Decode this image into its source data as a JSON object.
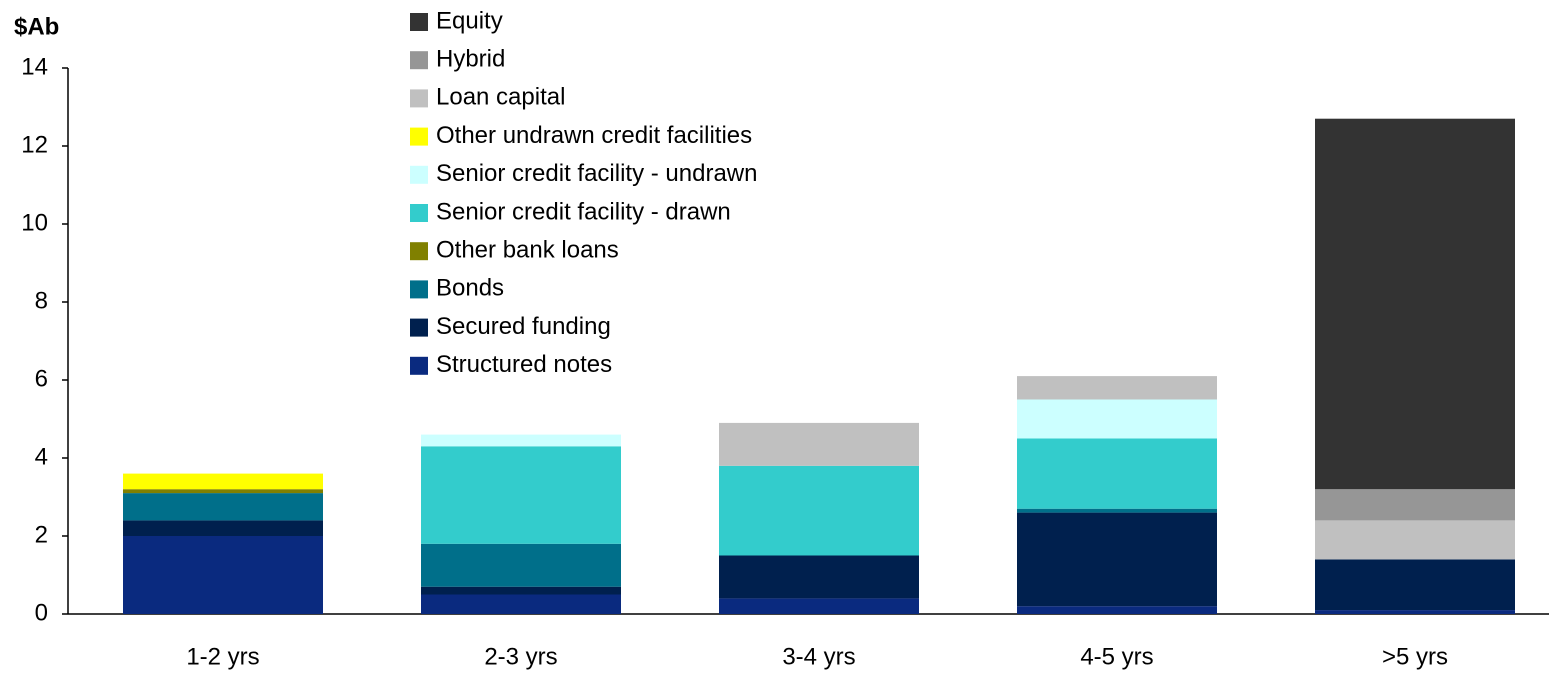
{
  "chart_data": {
    "type": "stacked_bar",
    "y_label": "$Ab",
    "categories": [
      "1-2 yrs",
      "2-3 yrs",
      "3-4 yrs",
      "4-5 yrs",
      ">5 yrs"
    ],
    "series": [
      {
        "name": "Structured notes",
        "color": "#0a2a7f",
        "values": [
          2.0,
          0.5,
          0.4,
          0.2,
          0.1
        ]
      },
      {
        "name": "Secured funding",
        "color": "#00204e",
        "values": [
          0.4,
          0.2,
          1.1,
          2.4,
          1.3
        ]
      },
      {
        "name": "Bonds",
        "color": "#006f8a",
        "values": [
          0.7,
          1.1,
          0,
          0.1,
          0
        ]
      },
      {
        "name": "Other bank loans",
        "color": "#808000",
        "values": [
          0.1,
          0,
          0,
          0,
          0
        ]
      },
      {
        "name": "Senior credit facility - drawn",
        "color": "#33cccc",
        "values": [
          0,
          2.5,
          2.3,
          1.8,
          0
        ]
      },
      {
        "name": "Senior credit facility - undrawn",
        "color": "#ccffff",
        "values": [
          0,
          0.3,
          0,
          1.0,
          0
        ]
      },
      {
        "name": "Other undrawn credit facilities",
        "color": "#ffff00",
        "values": [
          0.4,
          0,
          0,
          0,
          0
        ]
      },
      {
        "name": "Loan capital",
        "color": "#c0c0c0",
        "values": [
          0,
          0,
          1.1,
          0.6,
          1.0
        ]
      },
      {
        "name": "Hybrid",
        "color": "#969696",
        "values": [
          0,
          0,
          0,
          0,
          0.8
        ]
      },
      {
        "name": "Equity",
        "color": "#333333",
        "values": [
          0,
          0,
          0,
          0,
          9.5
        ]
      }
    ],
    "ylim": [
      0,
      14
    ],
    "yticks": [
      0,
      2,
      4,
      6,
      8,
      10,
      12,
      14
    ]
  }
}
